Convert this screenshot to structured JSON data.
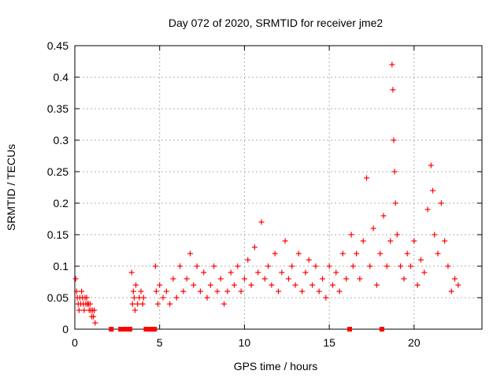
{
  "chart_data": {
    "type": "scatter",
    "title": "Day 072 of 2020, SRMTID for receiver jme2",
    "xlabel": "GPS time / hours",
    "ylabel": "SRMTID / TECUs",
    "xlim": [
      0,
      24
    ],
    "ylim": [
      0,
      0.45
    ],
    "xticks": [
      0,
      5,
      10,
      15,
      20
    ],
    "xtick_labels": [
      "0",
      "5",
      "10",
      "15",
      "20"
    ],
    "yticks": [
      0,
      0.05,
      0.1,
      0.15,
      0.2,
      0.25,
      0.3,
      0.35,
      0.4,
      0.45
    ],
    "ytick_labels": [
      "0",
      "0.05",
      "0.1",
      "0.15",
      "0.2",
      "0.25",
      "0.3",
      "0.35",
      "0.4",
      "0.45"
    ],
    "grid": true,
    "marker": "+",
    "color": "#ff0000",
    "series": [
      {
        "name": "SRMTID",
        "x": [
          0.05,
          0.1,
          0.15,
          0.2,
          0.25,
          0.3,
          0.35,
          0.4,
          0.45,
          0.5,
          0.55,
          0.6,
          0.65,
          0.7,
          0.75,
          0.8,
          0.85,
          0.9,
          0.95,
          1.0,
          1.05,
          1.1,
          1.15,
          1.2,
          2.15,
          2.7,
          2.9,
          3.1,
          3.25,
          3.35,
          3.4,
          3.45,
          3.5,
          3.55,
          3.6,
          3.7,
          3.8,
          3.9,
          4.0,
          4.05,
          4.2,
          4.35,
          4.4,
          4.55,
          4.7,
          4.75,
          4.8,
          4.9,
          5.0,
          5.2,
          5.4,
          5.6,
          5.8,
          6.0,
          6.2,
          6.4,
          6.6,
          6.8,
          7.0,
          7.2,
          7.4,
          7.6,
          7.8,
          8.0,
          8.2,
          8.4,
          8.6,
          8.8,
          9.0,
          9.2,
          9.4,
          9.6,
          9.8,
          10.0,
          10.2,
          10.4,
          10.6,
          10.8,
          11.0,
          11.2,
          11.4,
          11.6,
          11.8,
          12.0,
          12.2,
          12.4,
          12.6,
          12.8,
          13.0,
          13.2,
          13.4,
          13.6,
          13.8,
          14.0,
          14.2,
          14.4,
          14.6,
          14.8,
          15.0,
          15.2,
          15.4,
          15.6,
          15.8,
          16.0,
          16.2,
          16.3,
          16.4,
          16.6,
          16.8,
          17.0,
          17.2,
          17.4,
          17.6,
          17.8,
          18.0,
          18.1,
          18.2,
          18.4,
          18.6,
          18.7,
          18.75,
          18.8,
          18.85,
          18.9,
          19.0,
          19.2,
          19.4,
          19.6,
          19.8,
          20.0,
          20.2,
          20.4,
          20.6,
          20.8,
          21.0,
          21.1,
          21.2,
          21.4,
          21.6,
          21.8,
          22.0,
          22.2,
          22.4,
          22.6
        ],
        "y": [
          0.08,
          0.06,
          0.05,
          0.04,
          0.03,
          0.05,
          0.04,
          0.06,
          0.05,
          0.04,
          0.03,
          0.05,
          0.04,
          0.05,
          0.04,
          0.04,
          0.03,
          0.04,
          0.03,
          0.02,
          0.03,
          0.02,
          0.03,
          0.01,
          0.0,
          0.0,
          0.0,
          0.0,
          0.0,
          0.09,
          0.04,
          0.06,
          0.05,
          0.03,
          0.07,
          0.04,
          0.05,
          0.06,
          0.04,
          0.05,
          0.0,
          0.0,
          0.0,
          0.0,
          0.0,
          0.1,
          0.06,
          0.04,
          0.07,
          0.05,
          0.06,
          0.04,
          0.08,
          0.05,
          0.1,
          0.06,
          0.08,
          0.12,
          0.07,
          0.1,
          0.06,
          0.09,
          0.05,
          0.07,
          0.1,
          0.06,
          0.08,
          0.04,
          0.06,
          0.09,
          0.07,
          0.1,
          0.06,
          0.08,
          0.11,
          0.07,
          0.13,
          0.09,
          0.17,
          0.08,
          0.1,
          0.07,
          0.12,
          0.06,
          0.09,
          0.14,
          0.08,
          0.1,
          0.07,
          0.12,
          0.06,
          0.09,
          0.11,
          0.07,
          0.1,
          0.06,
          0.08,
          0.05,
          0.1,
          0.07,
          0.09,
          0.06,
          0.12,
          0.08,
          0.0,
          0.15,
          0.1,
          0.12,
          0.08,
          0.14,
          0.24,
          0.1,
          0.16,
          0.07,
          0.12,
          0.0,
          0.18,
          0.1,
          0.14,
          0.42,
          0.38,
          0.3,
          0.25,
          0.2,
          0.15,
          0.1,
          0.08,
          0.12,
          0.1,
          0.14,
          0.07,
          0.11,
          0.09,
          0.19,
          0.26,
          0.22,
          0.15,
          0.12,
          0.2,
          0.14,
          0.1,
          0.06,
          0.08,
          0.07
        ]
      }
    ]
  }
}
